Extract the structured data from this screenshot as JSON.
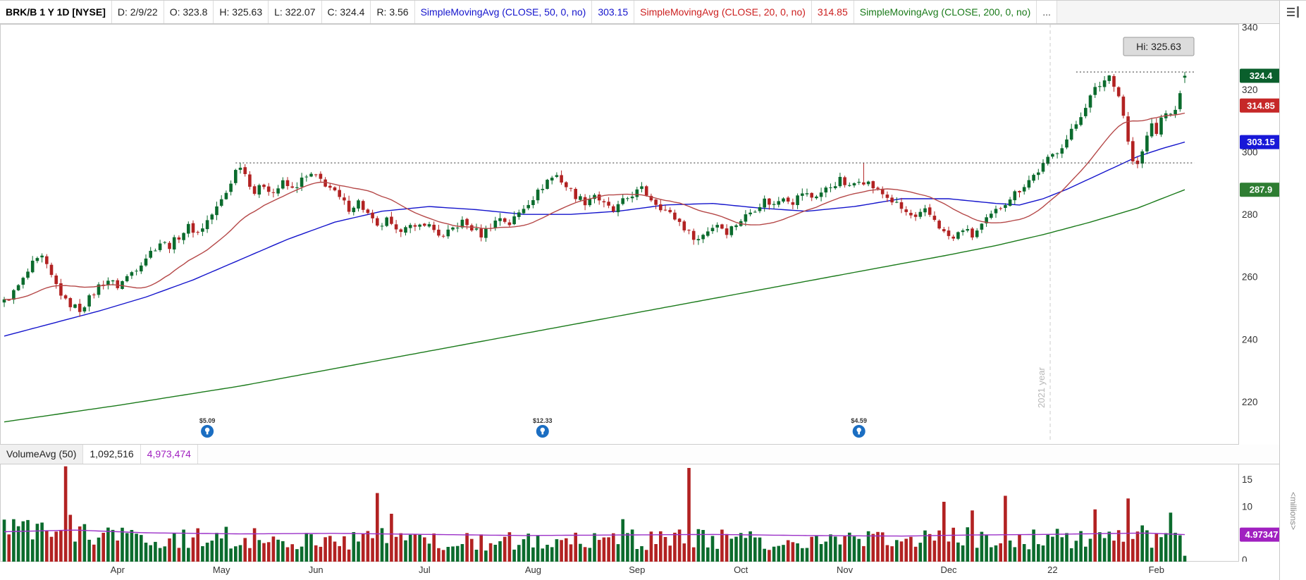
{
  "toolbar": {
    "cells": [
      {
        "name": "symbol-timeframe",
        "label": "BRK/B 1 Y 1D [NYSE]",
        "color": "#000000",
        "bold": true
      },
      {
        "name": "date-readout",
        "label": "D: 2/9/22",
        "color": "#222222"
      },
      {
        "name": "open-readout",
        "label": "O: 323.8",
        "color": "#222222"
      },
      {
        "name": "high-readout",
        "label": "H: 325.63",
        "color": "#222222"
      },
      {
        "name": "low-readout",
        "label": "L: 322.07",
        "color": "#222222"
      },
      {
        "name": "close-readout",
        "label": "C: 324.4",
        "color": "#222222"
      },
      {
        "name": "range-readout",
        "label": "R: 3.56",
        "color": "#222222"
      },
      {
        "name": "sma50-study",
        "label": "SimpleMovingAvg (CLOSE, 50, 0, no)",
        "color": "#1414cc"
      },
      {
        "name": "sma50-value",
        "label": "303.15",
        "color": "#1414cc"
      },
      {
        "name": "sma20-study",
        "label": "SimpleMovingAvg (CLOSE, 20, 0, no)",
        "color": "#cc2020"
      },
      {
        "name": "sma20-value",
        "label": "314.85",
        "color": "#cc2020"
      },
      {
        "name": "sma200-study",
        "label": "SimpleMovingAvg (CLOSE, 200, 0, no)",
        "color": "#1a7a1a"
      },
      {
        "name": "more-studies",
        "label": "...",
        "color": "#444444"
      }
    ]
  },
  "chart_data": {
    "type": "candlestick",
    "symbol": "BRK/B",
    "timeframe": "1 Y 1D",
    "exchange": "NYSE",
    "total_days": 251,
    "last_candle": {
      "date": "2/9/22",
      "open": 323.8,
      "high": 325.63,
      "low": 322.07,
      "close": 324.4,
      "range": 3.56
    },
    "price_axis": {
      "ticks": [
        340,
        320,
        300,
        280,
        260,
        240,
        220
      ],
      "range_min": 206.2,
      "range_max": 341
    },
    "x_axis": {
      "labels": [
        [
          "Apr",
          24
        ],
        [
          "May",
          46
        ],
        [
          "Jun",
          66
        ],
        [
          "Jul",
          89
        ],
        [
          "Aug",
          112
        ],
        [
          "Sep",
          134
        ],
        [
          "Oct",
          156
        ],
        [
          "Nov",
          178
        ],
        [
          "Dec",
          200
        ],
        [
          "22",
          222
        ],
        [
          "Feb",
          244
        ]
      ]
    },
    "candle_colors": {
      "up": "#0b6b2d",
      "down": "#b22222"
    },
    "price_path": [
      [
        0,
        252
      ],
      [
        2,
        255
      ],
      [
        4,
        259
      ],
      [
        6,
        264
      ],
      [
        8,
        266
      ],
      [
        10,
        260
      ],
      [
        13,
        252
      ],
      [
        16,
        249.5
      ],
      [
        18,
        253
      ],
      [
        20,
        257
      ],
      [
        22,
        259
      ],
      [
        24,
        257
      ],
      [
        26,
        260
      ],
      [
        28,
        263
      ],
      [
        31,
        268
      ],
      [
        33,
        271
      ],
      [
        35,
        270
      ],
      [
        37,
        273
      ],
      [
        39,
        276
      ],
      [
        41,
        274
      ],
      [
        43,
        278
      ],
      [
        45,
        282
      ],
      [
        47,
        287
      ],
      [
        49,
        294
      ],
      [
        50,
        296
      ],
      [
        51,
        293
      ],
      [
        53,
        287
      ],
      [
        55,
        289.5
      ],
      [
        57,
        287
      ],
      [
        59,
        290
      ],
      [
        61,
        288
      ],
      [
        63,
        291
      ],
      [
        65,
        292.5
      ],
      [
        67,
        291
      ],
      [
        69,
        288.5
      ],
      [
        71,
        285
      ],
      [
        73,
        282
      ],
      [
        75,
        284
      ],
      [
        77,
        280
      ],
      [
        79,
        275.5
      ],
      [
        81,
        278
      ],
      [
        83,
        274
      ],
      [
        85,
        277
      ],
      [
        87,
        275
      ],
      [
        89,
        277.5
      ],
      [
        91,
        275
      ],
      [
        93,
        272.5
      ],
      [
        95,
        275.5
      ],
      [
        97,
        277.5
      ],
      [
        99,
        275.5
      ],
      [
        101,
        273.5
      ],
      [
        103,
        276.5
      ],
      [
        105,
        279
      ],
      [
        107,
        277
      ],
      [
        109,
        280.5
      ],
      [
        111,
        284
      ],
      [
        113,
        287
      ],
      [
        115,
        291
      ],
      [
        117,
        292.5
      ],
      [
        119,
        289
      ],
      [
        121,
        286
      ],
      [
        123,
        284
      ],
      [
        125,
        286.5
      ],
      [
        127,
        283
      ],
      [
        129,
        281
      ],
      [
        131,
        284
      ],
      [
        133,
        286.5
      ],
      [
        135,
        288
      ],
      [
        137,
        285
      ],
      [
        139,
        282.5
      ],
      [
        141,
        280
      ],
      [
        143,
        277.5
      ],
      [
        145,
        274
      ],
      [
        147,
        272
      ],
      [
        149,
        275
      ],
      [
        151,
        277
      ],
      [
        153,
        274.5
      ],
      [
        155,
        277
      ],
      [
        157,
        279.5
      ],
      [
        159,
        282
      ],
      [
        161,
        284.5
      ],
      [
        163,
        283
      ],
      [
        165,
        286
      ],
      [
        167,
        284
      ],
      [
        169,
        287
      ],
      [
        171,
        285.5
      ],
      [
        173,
        287
      ],
      [
        175,
        289
      ],
      [
        177,
        291
      ],
      [
        179,
        288.5
      ],
      [
        181,
        291.5
      ],
      [
        183,
        290
      ],
      [
        185,
        287.5
      ],
      [
        187,
        285.5
      ],
      [
        189,
        283
      ],
      [
        191,
        280.5
      ],
      [
        193,
        278.5
      ],
      [
        195,
        281
      ],
      [
        197,
        278.5
      ],
      [
        199,
        274
      ],
      [
        201,
        272
      ],
      [
        203,
        275.5
      ],
      [
        205,
        273
      ],
      [
        207,
        276.5
      ],
      [
        209,
        279.5
      ],
      [
        211,
        282.5
      ],
      [
        213,
        285.5
      ],
      [
        215,
        288
      ],
      [
        217,
        291
      ],
      [
        219,
        294
      ],
      [
        221,
        297.5
      ],
      [
        223,
        300.5
      ],
      [
        225,
        304
      ],
      [
        227,
        309
      ],
      [
        229,
        315
      ],
      [
        231,
        320
      ],
      [
        233,
        323
      ],
      [
        234,
        324.5
      ],
      [
        235,
        322
      ],
      [
        236,
        318
      ],
      [
        237,
        312
      ],
      [
        238,
        303
      ],
      [
        239,
        297
      ],
      [
        240,
        295.5
      ],
      [
        241,
        300
      ],
      [
        242,
        305
      ],
      [
        243,
        309
      ],
      [
        244,
        306.5
      ],
      [
        245,
        310
      ],
      [
        246,
        313
      ],
      [
        247,
        311.5
      ],
      [
        248,
        314.5
      ],
      [
        249,
        318
      ],
      [
        250,
        324.4
      ]
    ],
    "forced_highs": [
      [
        8,
        267.5
      ],
      [
        50,
        296.6
      ],
      [
        182,
        296.4
      ]
    ],
    "sma": {
      "sma20": {
        "period": 20,
        "color": "#b54848",
        "current": 314.85
      },
      "sma50": {
        "period": 50,
        "color": "#1414cc",
        "current": 303.15,
        "path": [
          [
            0,
            241
          ],
          [
            10,
            245
          ],
          [
            20,
            249
          ],
          [
            30,
            253.5
          ],
          [
            40,
            259
          ],
          [
            50,
            265.5
          ],
          [
            60,
            272
          ],
          [
            70,
            277.5
          ],
          [
            80,
            281
          ],
          [
            90,
            282.5
          ],
          [
            100,
            281.5
          ],
          [
            110,
            280
          ],
          [
            120,
            280
          ],
          [
            130,
            281
          ],
          [
            140,
            283
          ],
          [
            150,
            283.5
          ],
          [
            160,
            282
          ],
          [
            170,
            281
          ],
          [
            180,
            282.5
          ],
          [
            190,
            285
          ],
          [
            200,
            285
          ],
          [
            210,
            283.5
          ],
          [
            215,
            283
          ],
          [
            220,
            285
          ],
          [
            225,
            288
          ],
          [
            230,
            291.5
          ],
          [
            235,
            295
          ],
          [
            240,
            298.5
          ],
          [
            245,
            301
          ],
          [
            250,
            303.15
          ]
        ]
      },
      "sma200": {
        "period": 200,
        "color": "#1a7a1a",
        "current": 287.9,
        "path": [
          [
            0,
            213.5
          ],
          [
            25,
            219
          ],
          [
            50,
            225
          ],
          [
            75,
            232
          ],
          [
            100,
            239
          ],
          [
            125,
            246
          ],
          [
            150,
            253
          ],
          [
            175,
            260
          ],
          [
            200,
            267
          ],
          [
            210,
            270
          ],
          [
            220,
            273.5
          ],
          [
            230,
            277.5
          ],
          [
            240,
            282
          ],
          [
            250,
            287.9
          ]
        ]
      }
    },
    "price_badges": [
      {
        "name": "last-price-badge",
        "value": "324.4",
        "price": 324.4,
        "bg": "#0a5f2c"
      },
      {
        "name": "sma20-badge",
        "value": "314.85",
        "price": 314.85,
        "bg": "#c62828"
      },
      {
        "name": "sma50-badge",
        "value": "303.15",
        "price": 303.15,
        "bg": "#1818d8"
      },
      {
        "name": "sma200-badge",
        "value": "287.9",
        "price": 287.9,
        "bg": "#2e7d32"
      }
    ],
    "dotted_levels": [
      {
        "price": 296.5,
        "from_day": 49,
        "to_day": 252
      },
      {
        "price": 325.63,
        "from_day": 227,
        "to_day": 252
      }
    ],
    "hi_label": "Hi: 325.63",
    "year_line": {
      "day": 221.5,
      "label": "2021 year"
    },
    "event_markers": [
      {
        "day": 43,
        "label": "$5.09"
      },
      {
        "day": 114,
        "label": "$12.33"
      },
      {
        "day": 181,
        "label": "$4.59"
      }
    ],
    "volume": {
      "header": [
        {
          "name": "volumeavg-study",
          "label": "VolumeAvg (50)",
          "color": "#222222",
          "first": true
        },
        {
          "name": "volume-current-value",
          "label": "1,092,516",
          "color": "#222222"
        },
        {
          "name": "volume-average-value",
          "label": "4,973,474",
          "color": "#a020c0"
        }
      ],
      "axis_ticks": [
        15,
        10,
        0
      ],
      "badge": {
        "value": "4.97347",
        "v": 4.97347,
        "bg": "#a020c0"
      },
      "unit_label": "<millions>",
      "avg_line_color": "#9b30c8",
      "avg_line_path": [
        [
          0,
          5.5
        ],
        [
          15,
          5.8
        ],
        [
          30,
          5.3
        ],
        [
          50,
          5.1
        ],
        [
          70,
          5.2
        ],
        [
          90,
          5.0
        ],
        [
          110,
          4.8
        ],
        [
          130,
          4.9
        ],
        [
          150,
          5.0
        ],
        [
          170,
          4.8
        ],
        [
          190,
          4.7
        ],
        [
          205,
          4.9
        ],
        [
          220,
          5.0
        ],
        [
          232,
          5.15
        ],
        [
          242,
          5.25
        ],
        [
          250,
          4.973
        ]
      ],
      "profile": [
        [
          0,
          6.0
        ],
        [
          4,
          5.0
        ],
        [
          8,
          4.6
        ],
        [
          12,
          5.0
        ],
        [
          16,
          4.4
        ],
        [
          22,
          4.0
        ],
        [
          30,
          3.7
        ],
        [
          40,
          3.9
        ],
        [
          50,
          4.3
        ],
        [
          60,
          3.7
        ],
        [
          70,
          3.5
        ],
        [
          80,
          3.8
        ],
        [
          90,
          3.3
        ],
        [
          100,
          3.4
        ],
        [
          110,
          3.5
        ],
        [
          120,
          3.4
        ],
        [
          130,
          3.6
        ],
        [
          140,
          3.7
        ],
        [
          150,
          3.9
        ],
        [
          160,
          3.4
        ],
        [
          170,
          3.3
        ],
        [
          180,
          3.5
        ],
        [
          190,
          3.6
        ],
        [
          200,
          4.2
        ],
        [
          210,
          4.0
        ],
        [
          220,
          3.7
        ],
        [
          228,
          4.2
        ],
        [
          235,
          4.8
        ],
        [
          242,
          4.3
        ],
        [
          250,
          3.0
        ]
      ],
      "spikes": [
        {
          "day": 2,
          "v": 7.8
        },
        {
          "day": 13,
          "v": 17.5,
          "dir": "down"
        },
        {
          "day": 14,
          "v": 8.6,
          "dir": "down"
        },
        {
          "day": 79,
          "v": 12.6,
          "dir": "down"
        },
        {
          "day": 82,
          "v": 8.8,
          "dir": "down"
        },
        {
          "day": 131,
          "v": 7.8
        },
        {
          "day": 145,
          "v": 17.2,
          "dir": "down"
        },
        {
          "day": 199,
          "v": 11.0,
          "dir": "down"
        },
        {
          "day": 205,
          "v": 9.4
        },
        {
          "day": 212,
          "v": 12.1,
          "dir": "down"
        },
        {
          "day": 231,
          "v": 9.6,
          "dir": "down"
        },
        {
          "day": 238,
          "v": 11.6,
          "dir": "down"
        },
        {
          "day": 247,
          "v": 9.0
        },
        {
          "day": 250,
          "v": 1.09,
          "dir": "up"
        }
      ]
    }
  }
}
